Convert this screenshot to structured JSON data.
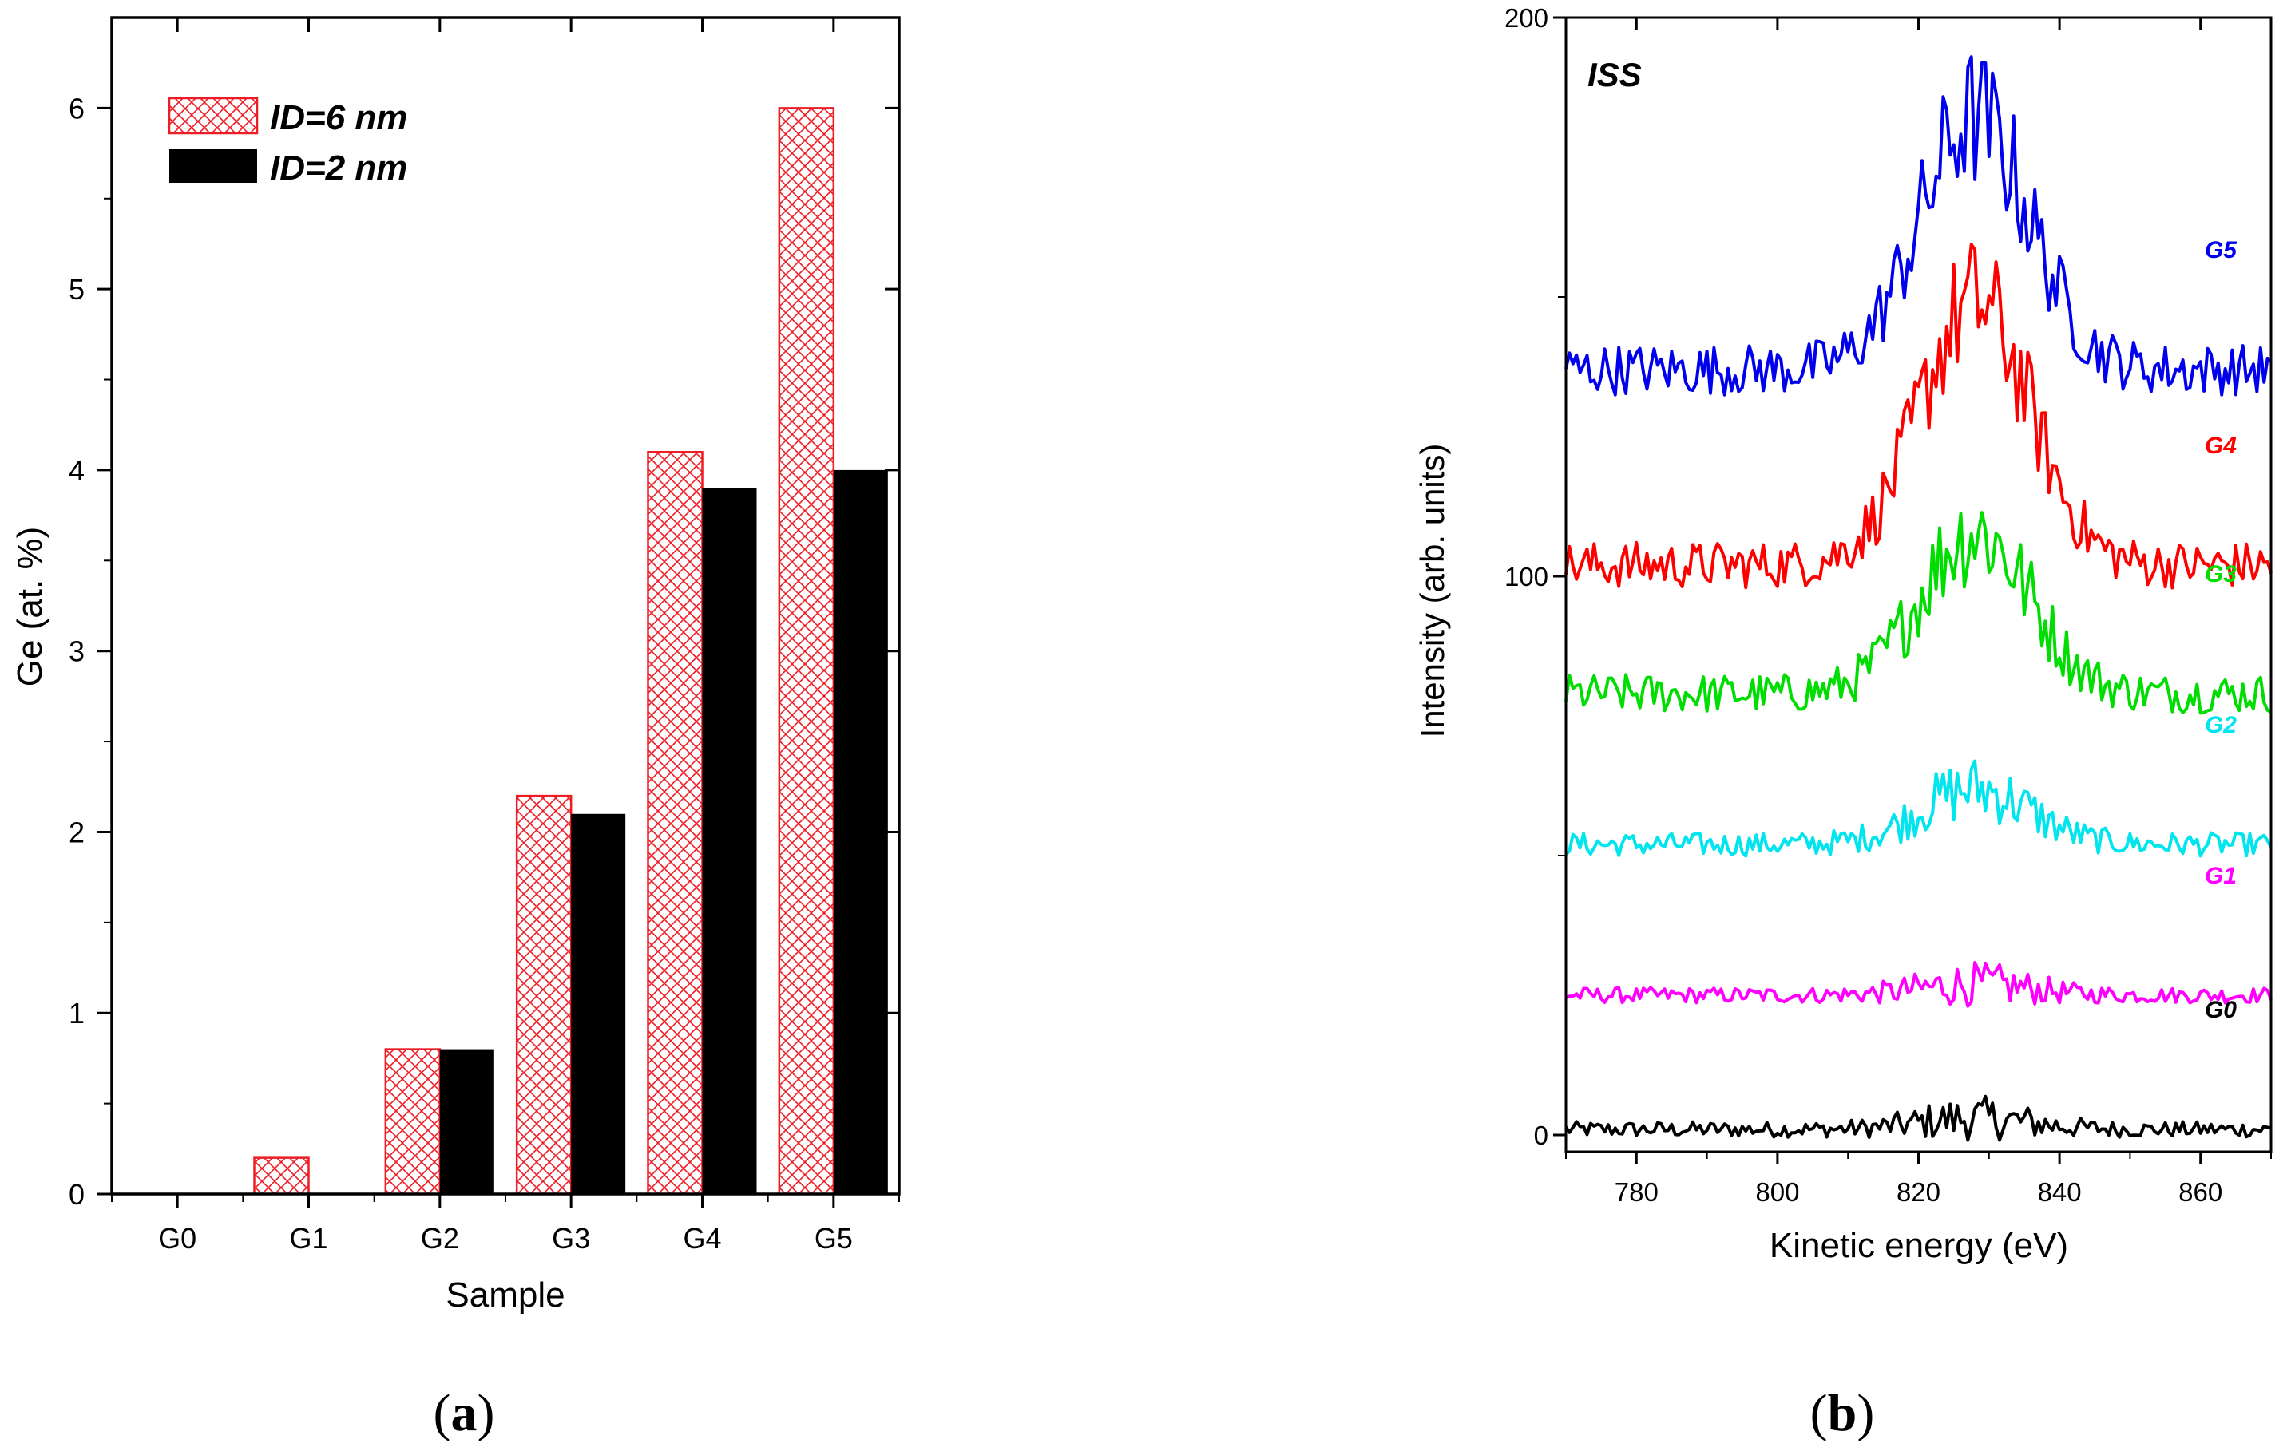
{
  "panels": {
    "a_label": {
      "paren_open": "(",
      "letter": "a",
      "paren_close": ")"
    },
    "b_label": {
      "paren_open": "(",
      "letter": "b",
      "paren_close": ")"
    }
  },
  "chart_data": [
    {
      "id": "a",
      "type": "bar",
      "title": "",
      "xlabel": "Sample",
      "ylabel": "Ge (at. %)",
      "categories": [
        "G0",
        "G1",
        "G2",
        "G3",
        "G4",
        "G5"
      ],
      "series": [
        {
          "name": "ID=6 nm",
          "values": [
            0,
            0.2,
            0.8,
            2.2,
            4.1,
            6.0
          ],
          "color": "#ee1c24",
          "pattern": "crosshatch"
        },
        {
          "name": "ID=2 nm",
          "values": [
            0,
            0,
            0.8,
            2.1,
            3.9,
            4.0
          ],
          "color": "#000000",
          "pattern": "solid"
        }
      ],
      "ylim": [
        0,
        6.5
      ],
      "yticks": [
        "0",
        "1",
        "2",
        "3",
        "4",
        "5",
        "6"
      ],
      "legend_position": "top-left"
    },
    {
      "id": "b",
      "type": "line",
      "title": "ISS",
      "xlabel": "Kinetic energy (eV)",
      "ylabel": "Intensity (arb. units)",
      "xlim": [
        770,
        870
      ],
      "ylim": [
        -3,
        200
      ],
      "xticks": [
        "780",
        "800",
        "820",
        "840",
        "860"
      ],
      "yticks": [
        "0",
        "100",
        "200"
      ],
      "x_step_eV": 0.5,
      "series": [
        {
          "name": "G0",
          "color": "#000000",
          "baseline": 1,
          "peak_height": 2,
          "noise_amplitude": 4
        },
        {
          "name": "G1",
          "color": "#ff00ff",
          "baseline": 25,
          "peak_height": 2,
          "noise_amplitude": 4
        },
        {
          "name": "G2",
          "color": "#00e5ee",
          "baseline": 52,
          "peak_height": 10,
          "noise_amplitude": 6
        },
        {
          "name": "G3",
          "color": "#00dd00",
          "baseline": 79,
          "peak_height": 29,
          "noise_amplitude": 10
        },
        {
          "name": "G4",
          "color": "#ff0000",
          "baseline": 102,
          "peak_height": 47,
          "noise_amplitude": 12
        },
        {
          "name": "G5",
          "color": "#0000ee",
          "baseline": 137,
          "peak_height": 45,
          "noise_amplitude": 13
        }
      ]
    }
  ]
}
